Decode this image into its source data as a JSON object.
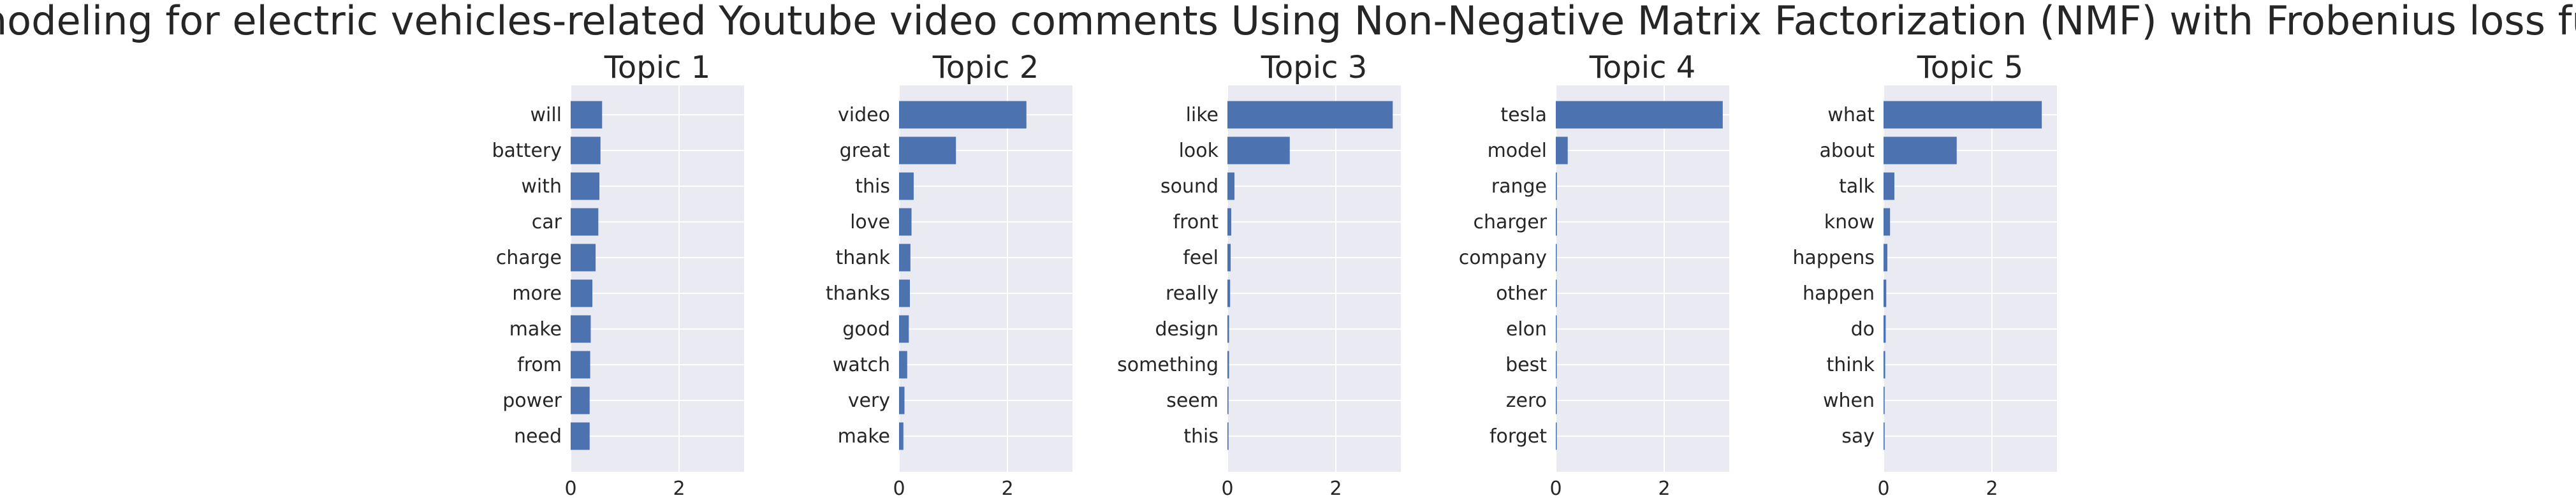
{
  "figure_title": "Topic modeling for electric vehicles-related Youtube video comments Using Non-Negative Matrix Factorization (NMF) with Frobenius loss function",
  "style": {
    "bar_color": "#4c72b0",
    "plot_bg": "#eaeaf2",
    "grid_color": "#ffffff",
    "text_color": "#262626"
  },
  "chart_data": [
    {
      "type": "bar",
      "orientation": "horizontal",
      "title": "Topic 1",
      "categories": [
        "will",
        "battery",
        "with",
        "car",
        "charge",
        "more",
        "make",
        "from",
        "power",
        "need"
      ],
      "values": [
        0.58,
        0.55,
        0.53,
        0.51,
        0.46,
        0.4,
        0.37,
        0.36,
        0.35,
        0.35
      ],
      "xticks": [
        "0",
        "2"
      ],
      "xlim": [
        0,
        3.2
      ],
      "grid": true
    },
    {
      "type": "bar",
      "orientation": "horizontal",
      "title": "Topic 2",
      "categories": [
        "video",
        "great",
        "this",
        "love",
        "thank",
        "thanks",
        "good",
        "watch",
        "very",
        "make"
      ],
      "values": [
        2.35,
        1.05,
        0.27,
        0.23,
        0.21,
        0.2,
        0.18,
        0.15,
        0.1,
        0.08
      ],
      "xticks": [
        "0",
        "2"
      ],
      "xlim": [
        0,
        3.2
      ],
      "grid": true
    },
    {
      "type": "bar",
      "orientation": "horizontal",
      "title": "Topic 3",
      "categories": [
        "like",
        "look",
        "sound",
        "front",
        "feel",
        "really",
        "design",
        "something",
        "seem",
        "this"
      ],
      "values": [
        3.05,
        1.15,
        0.13,
        0.07,
        0.06,
        0.05,
        0.03,
        0.03,
        0.02,
        0.02
      ],
      "xticks": [
        "0",
        "2"
      ],
      "xlim": [
        0,
        3.2
      ],
      "grid": true
    },
    {
      "type": "bar",
      "orientation": "horizontal",
      "title": "Topic 4",
      "categories": [
        "tesla",
        "model",
        "range",
        "charger",
        "company",
        "other",
        "elon",
        "best",
        "zero",
        "forget"
      ],
      "values": [
        3.08,
        0.22,
        0.02,
        0.02,
        0.01,
        0.01,
        0.01,
        0.01,
        0.01,
        0.01
      ],
      "xticks": [
        "0",
        "2"
      ],
      "xlim": [
        0,
        3.2
      ],
      "grid": true
    },
    {
      "type": "bar",
      "orientation": "horizontal",
      "title": "Topic 5",
      "categories": [
        "what",
        "about",
        "talk",
        "know",
        "happens",
        "happen",
        "do",
        "think",
        "when",
        "say"
      ],
      "values": [
        2.92,
        1.35,
        0.2,
        0.12,
        0.07,
        0.05,
        0.04,
        0.03,
        0.02,
        0.02
      ],
      "xticks": [
        "0",
        "2"
      ],
      "xlim": [
        0,
        3.2
      ],
      "grid": true
    }
  ]
}
